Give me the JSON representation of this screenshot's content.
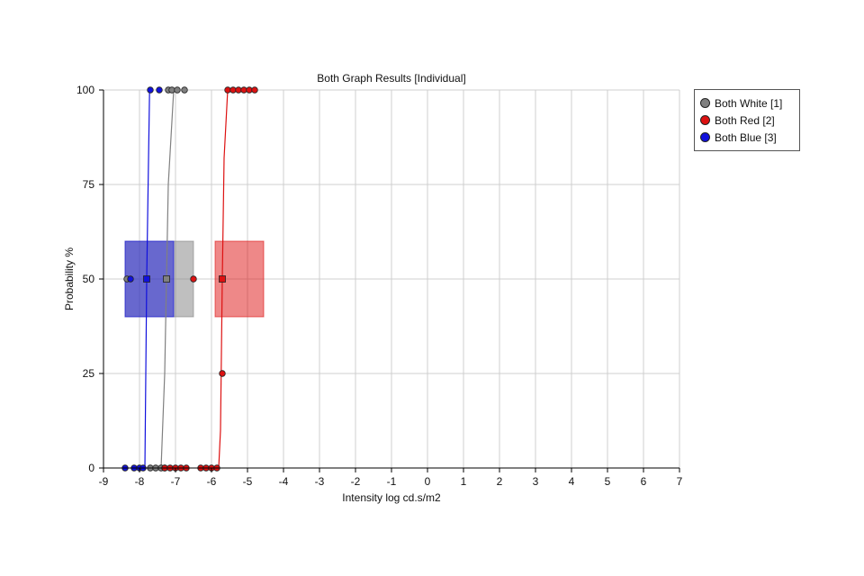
{
  "chart_data": {
    "type": "scatter",
    "title": "Both Graph Results [Individual]",
    "xlabel": "Intensity log cd.s/m2",
    "ylabel": "Probability %",
    "xlim": [
      -9,
      7
    ],
    "ylim": [
      0,
      100
    ],
    "xticks": [
      -9,
      -8,
      -7,
      -6,
      -5,
      -4,
      -3,
      -2,
      -1,
      0,
      1,
      2,
      3,
      4,
      5,
      6,
      7
    ],
    "yticks": [
      0,
      25,
      50,
      75,
      100
    ],
    "grid": true,
    "legend_position": "right-top",
    "series": [
      {
        "name": "Both White [1]",
        "color": "#808080",
        "points": [
          [
            -7.7,
            0
          ],
          [
            -7.55,
            0
          ],
          [
            -7.4,
            0
          ],
          [
            -7.3,
            0
          ],
          [
            -7.2,
            100
          ],
          [
            -7.1,
            100
          ],
          [
            -6.95,
            100
          ],
          [
            -6.75,
            100
          ]
        ],
        "curve": [
          [
            -7.4,
            0
          ],
          [
            -7.3,
            25
          ],
          [
            -7.2,
            75
          ],
          [
            -7.05,
            100
          ]
        ],
        "threshold": -7.25,
        "interval": [
          -8.4,
          -6.5
        ],
        "marker_other": -8.35
      },
      {
        "name": "Both Red [2]",
        "color": "#dd1111",
        "points": [
          [
            -7.3,
            0
          ],
          [
            -7.15,
            0
          ],
          [
            -7.0,
            0
          ],
          [
            -6.85,
            0
          ],
          [
            -6.7,
            0
          ],
          [
            -6.3,
            0
          ],
          [
            -6.15,
            0
          ],
          [
            -6.0,
            0
          ],
          [
            -5.85,
            0
          ],
          [
            -5.7,
            25
          ],
          [
            -5.55,
            100
          ],
          [
            -5.4,
            100
          ],
          [
            -5.25,
            100
          ],
          [
            -5.1,
            100
          ],
          [
            -4.95,
            100
          ],
          [
            -4.8,
            100
          ]
        ],
        "curve": [
          [
            -5.8,
            0
          ],
          [
            -5.75,
            10
          ],
          [
            -5.7,
            50
          ],
          [
            -5.65,
            82
          ],
          [
            -5.55,
            100
          ]
        ],
        "threshold": -5.7,
        "interval": [
          -5.9,
          -4.55
        ],
        "marker_other": -6.5
      },
      {
        "name": "Both Blue [3]",
        "color": "#1111dd",
        "points": [
          [
            -8.4,
            0
          ],
          [
            -8.15,
            0
          ],
          [
            -8.0,
            0
          ],
          [
            -7.9,
            0
          ],
          [
            -7.7,
            100
          ],
          [
            -7.45,
            100
          ]
        ],
        "curve": [
          [
            -7.85,
            0
          ],
          [
            -7.8,
            50
          ],
          [
            -7.72,
            100
          ]
        ],
        "threshold": -7.8,
        "interval": [
          -8.4,
          -7.05
        ],
        "marker_other": -8.25
      }
    ]
  }
}
